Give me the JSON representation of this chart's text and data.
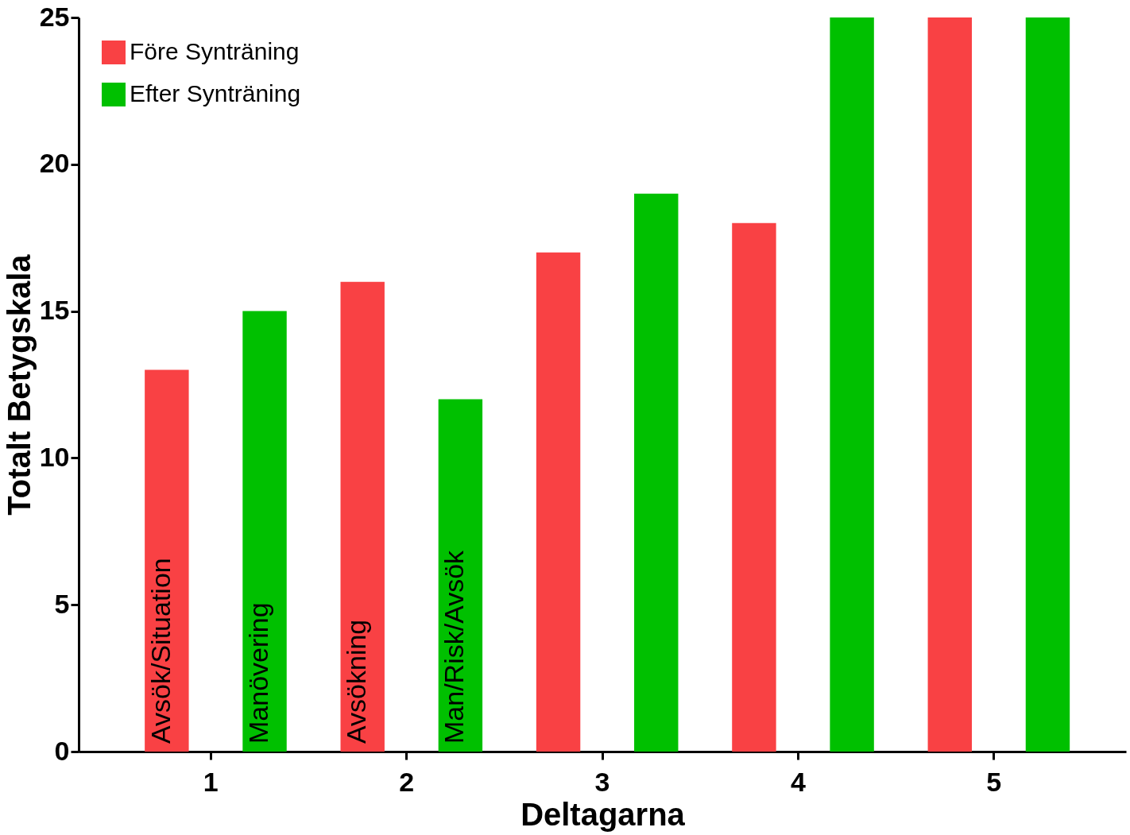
{
  "chart_data": {
    "type": "bar",
    "xlabel": "Deltagarna",
    "ylabel": "Totalt Betygskala",
    "categories": [
      "1",
      "2",
      "3",
      "4",
      "5"
    ],
    "series": [
      {
        "name": "Före Synträning",
        "color": "#f94144",
        "values": [
          13,
          16,
          17,
          18,
          25
        ]
      },
      {
        "name": "Efter Synträning",
        "color": "#00c000",
        "values": [
          15,
          12,
          19,
          25,
          25
        ]
      }
    ],
    "annotations": [
      "Avsök/Situation",
      "Manövering",
      "Avsökning",
      "Man/Risk/Avsök"
    ],
    "ylim": [
      0,
      25
    ],
    "yticks": [
      0,
      5,
      10,
      15,
      20,
      25
    ],
    "grid": false,
    "legend": "top left"
  }
}
